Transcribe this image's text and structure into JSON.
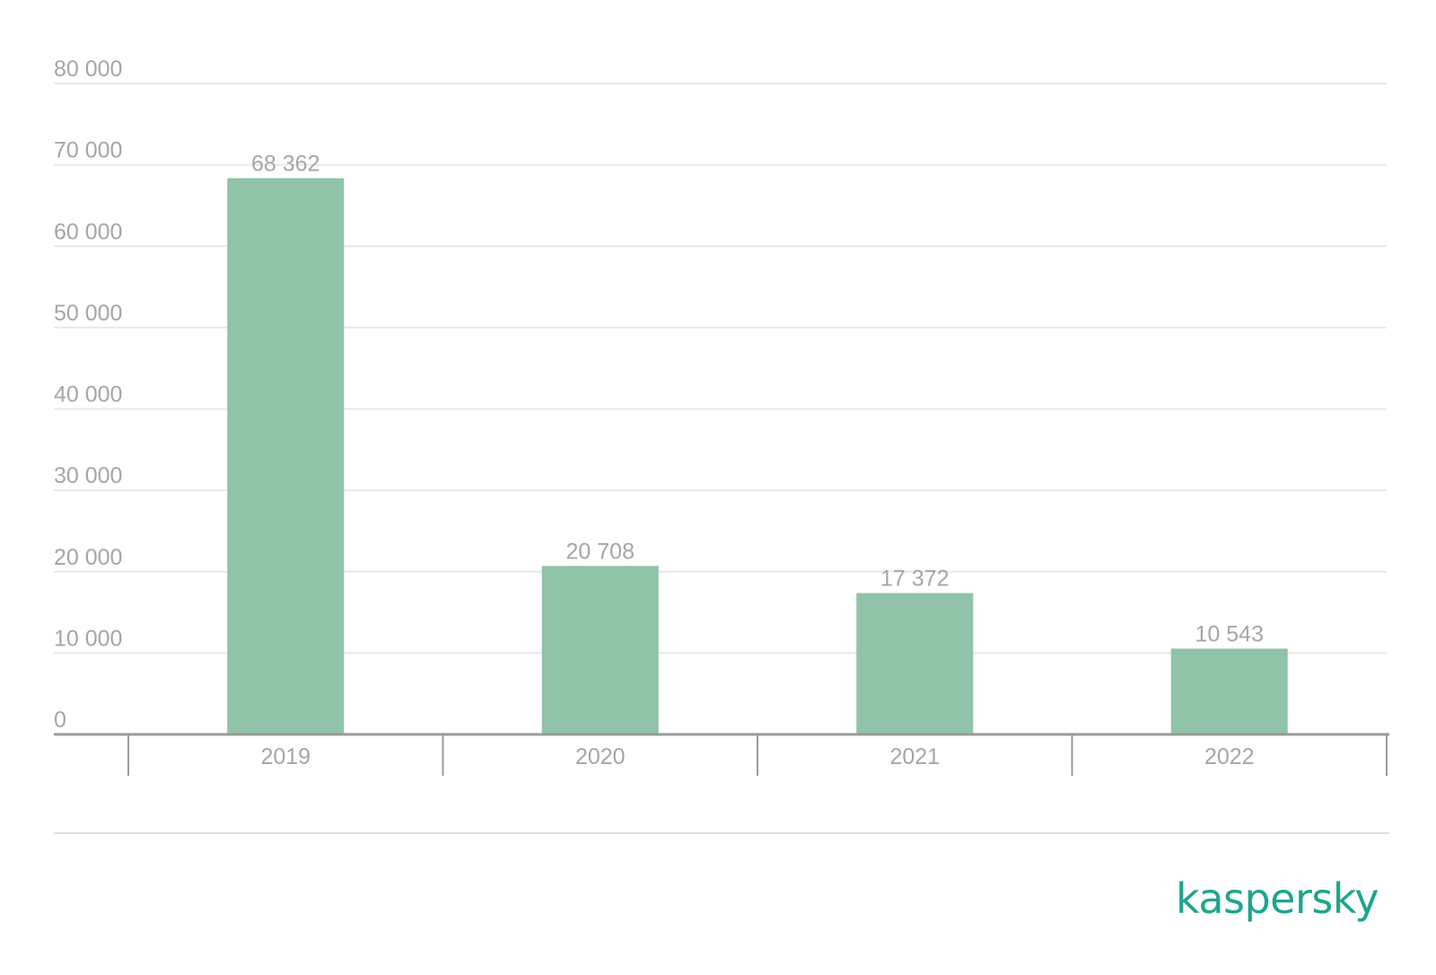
{
  "colors": {
    "bar": "#90c3a8",
    "text": "#a6a6a6",
    "grid": "#e8e8e8",
    "axis": "#9a9a9a",
    "brand": "#1ea58c"
  },
  "brand": {
    "logo_text": "kaspersky"
  },
  "chart_data": {
    "type": "bar",
    "categories": [
      "2019",
      "2020",
      "2021",
      "2022"
    ],
    "values": [
      68362,
      20708,
      17372,
      10543
    ],
    "value_labels": [
      "68 362",
      "20 708",
      "17 372",
      "10 543"
    ],
    "y_ticks": [
      0,
      10000,
      20000,
      30000,
      40000,
      50000,
      60000,
      70000,
      80000
    ],
    "y_tick_labels": [
      "0",
      "10 000",
      "20 000",
      "30 000",
      "40 000",
      "50 000",
      "60 000",
      "70 000",
      "80 000"
    ],
    "ylim": [
      0,
      80000
    ],
    "grid": true,
    "legend": "none",
    "title": "",
    "xlabel": "",
    "ylabel": ""
  }
}
